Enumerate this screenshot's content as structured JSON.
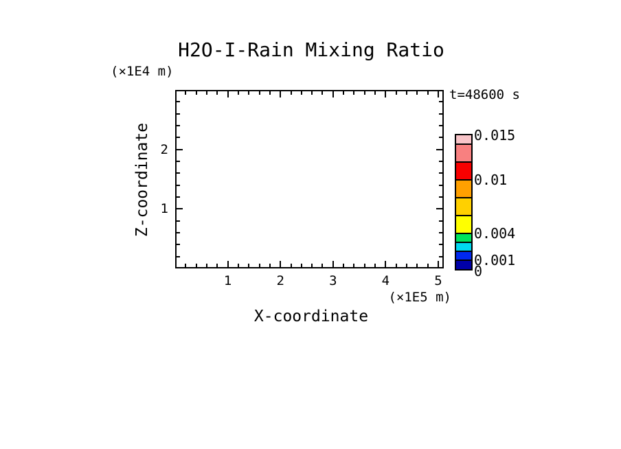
{
  "chart_data": {
    "type": "heatmap",
    "title": "H2O-I-Rain Mixing Ratio",
    "annotation": "t=48600 s",
    "xlabel": "X-coordinate",
    "x_unit": "(×1E5 m)",
    "ylabel": "Z-coordinate",
    "y_unit": "(×1E4 m)",
    "xlim": [
      0,
      5.1
    ],
    "ylim": [
      0,
      3.0
    ],
    "x_major_ticks": [
      1,
      2,
      3,
      4,
      5
    ],
    "y_major_ticks": [
      1,
      2
    ],
    "minor_tick_interval": 0.2,
    "grid": false,
    "legend_position": "right-colorbar",
    "plot_area_values": [],
    "note": "plot interior is empty: no rain mixing ratio contour fill at this timestep",
    "colorbar": {
      "levels": [
        0,
        0.001,
        0.002,
        0.003,
        0.004,
        0.006,
        0.008,
        0.01,
        0.012,
        0.014,
        0.015
      ],
      "colors": [
        "#0000A8",
        "#0028F0",
        "#00D8F0",
        "#00E45C",
        "#FFFF00",
        "#FFD000",
        "#FFA000",
        "#F80000",
        "#F88080",
        "#F8C4C8"
      ],
      "labels": [
        {
          "text": "0.015",
          "value": 0.015
        },
        {
          "text": "0.01",
          "value": 0.01
        },
        {
          "text": "0.004",
          "value": 0.004
        },
        {
          "text": "0.001",
          "value": 0.001
        },
        {
          "text": "0",
          "value": 0
        }
      ]
    },
    "axis_color": "#000000",
    "text_color": "#000000",
    "background_color": "#FFFFFF"
  }
}
